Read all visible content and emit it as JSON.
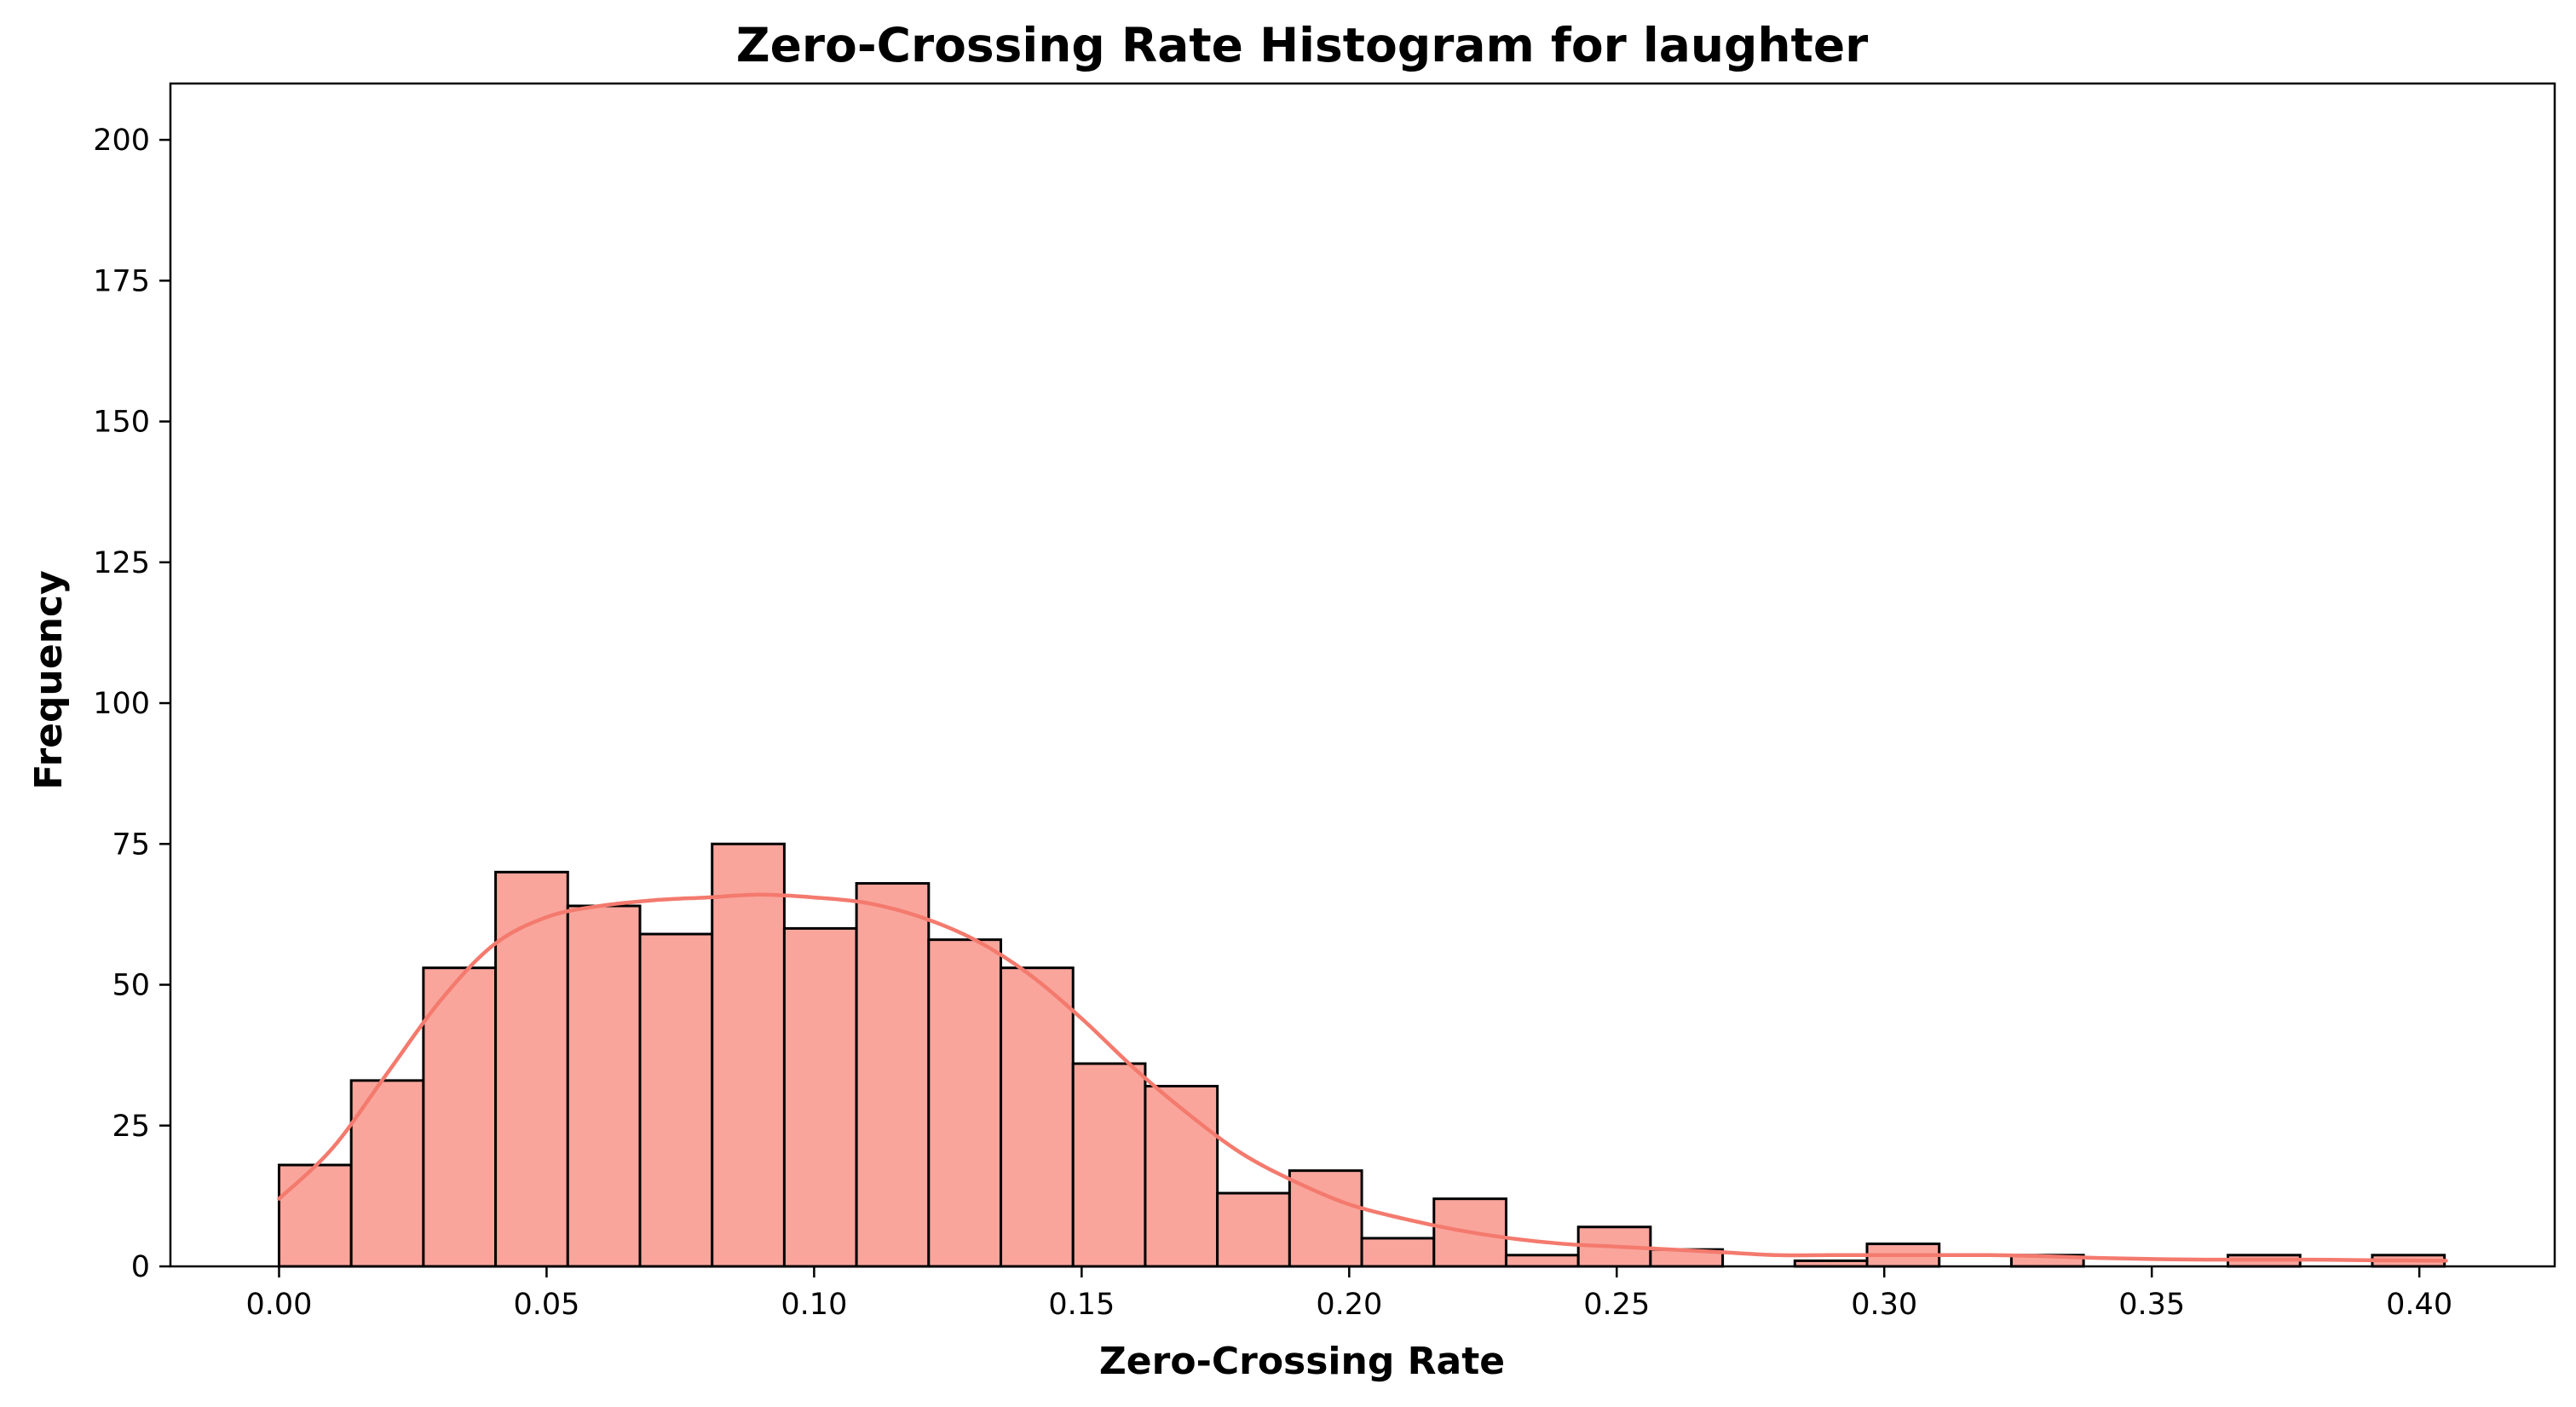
{
  "chart_data": {
    "type": "bar",
    "title": "Zero-Crossing Rate Histogram for laughter",
    "xlabel": "Zero-Crossing Rate",
    "ylabel": "Frequency",
    "xlim": [
      -0.0203,
      0.4253
    ],
    "ylim": [
      0,
      210
    ],
    "xticks": [
      "0.00",
      "0.05",
      "0.10",
      "0.15",
      "0.20",
      "0.25",
      "0.30",
      "0.35",
      "0.40"
    ],
    "yticks": [
      "0",
      "25",
      "50",
      "75",
      "100",
      "125",
      "150",
      "175",
      "200"
    ],
    "bin_start": 0.0,
    "bin_width": 0.01349,
    "values": [
      18,
      33,
      53,
      70,
      64,
      59,
      75,
      60,
      68,
      58,
      53,
      36,
      32,
      13,
      17,
      5,
      12,
      2,
      7,
      3,
      0,
      1,
      4,
      0,
      2,
      0,
      0,
      2,
      0,
      2
    ],
    "kde": {
      "x": [
        0.0,
        0.01,
        0.02,
        0.03,
        0.04,
        0.05,
        0.06,
        0.07,
        0.08,
        0.09,
        0.1,
        0.11,
        0.12,
        0.13,
        0.14,
        0.15,
        0.16,
        0.17,
        0.18,
        0.19,
        0.2,
        0.21,
        0.22,
        0.23,
        0.24,
        0.25,
        0.26,
        0.27,
        0.28,
        0.29,
        0.3,
        0.31,
        0.32,
        0.33,
        0.34,
        0.35,
        0.36,
        0.37,
        0.38,
        0.39,
        0.405
      ],
      "y": [
        12,
        21,
        34,
        47,
        57,
        62,
        64,
        65,
        65.5,
        66,
        65.5,
        64.5,
        62,
        58,
        52,
        44,
        35,
        27,
        20,
        15,
        11,
        8.5,
        6.5,
        5,
        4,
        3.5,
        3,
        2.5,
        2,
        2,
        2,
        2,
        2,
        1.8,
        1.5,
        1.3,
        1.2,
        1.2,
        1.2,
        1.1,
        1
      ]
    },
    "bar_color": "#f9a59c",
    "bar_edge_color": "#000000",
    "kde_color": "#f47a6e",
    "grid": false,
    "legend": "none"
  }
}
